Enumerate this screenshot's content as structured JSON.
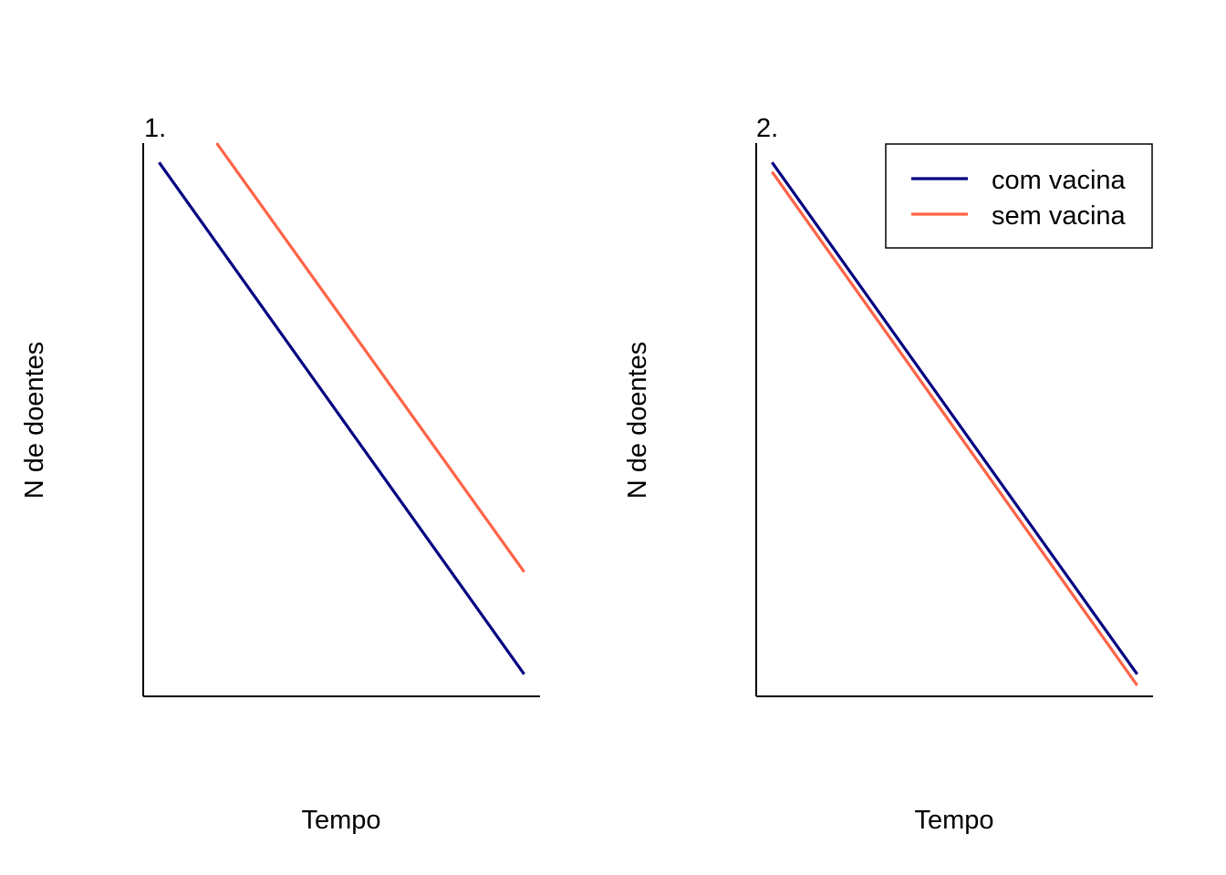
{
  "chart_data": [
    {
      "type": "line",
      "panel_label": "1.",
      "xlabel": "Tempo",
      "ylabel": "N de doentes",
      "xlim": [
        0,
        1
      ],
      "ylim": [
        0,
        1
      ],
      "axes": "left-bottom only",
      "ticks": "none",
      "grid": false,
      "legend": "none",
      "series": [
        {
          "name": "com vacina",
          "color": "#000080",
          "x": [
            0.04,
            0.96
          ],
          "y": [
            0.965,
            0.04
          ]
        },
        {
          "name": "sem vacina",
          "color": "#FF6347",
          "x": [
            0.185,
            0.96
          ],
          "y": [
            1.0,
            0.225
          ]
        }
      ]
    },
    {
      "type": "line",
      "panel_label": "2.",
      "xlabel": "Tempo",
      "ylabel": "N de doentes",
      "xlim": [
        0,
        1
      ],
      "ylim": [
        0,
        1
      ],
      "axes": "left-bottom only",
      "ticks": "none",
      "grid": false,
      "legend": "top-right",
      "series": [
        {
          "name": "com vacina",
          "color": "#000080",
          "x": [
            0.04,
            0.96
          ],
          "y": [
            0.965,
            0.04
          ]
        },
        {
          "name": "sem vacina",
          "color": "#FF6347",
          "x": [
            0.04,
            0.96
          ],
          "y": [
            0.948,
            0.02
          ]
        }
      ]
    }
  ]
}
